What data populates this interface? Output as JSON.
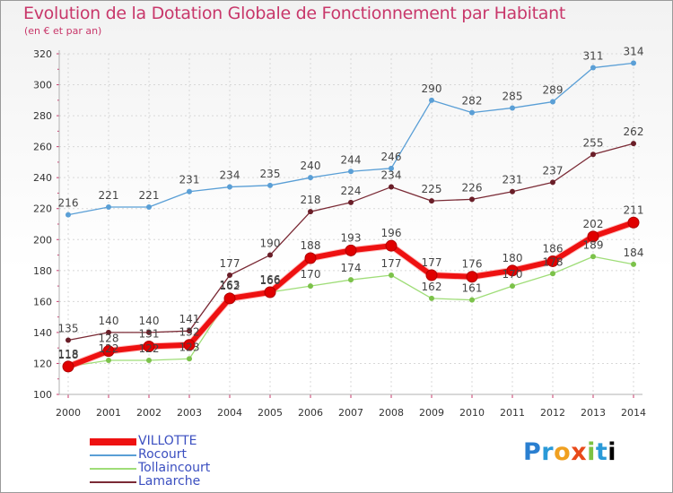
{
  "chart_data": {
    "type": "line",
    "title": "Evolution de la Dotation Globale de Fonctionnement par Habitant",
    "subtitle": "(en € et par an)",
    "categories": [
      "2000",
      "2001",
      "2002",
      "2003",
      "2004",
      "2005",
      "2006",
      "2007",
      "2008",
      "2009",
      "2010",
      "2011",
      "2012",
      "2013",
      "2014"
    ],
    "ylim": [
      100,
      320
    ],
    "yticks": [
      100,
      120,
      140,
      160,
      180,
      200,
      220,
      240,
      260,
      280,
      300,
      320
    ],
    "series": [
      {
        "name": "Rocourt",
        "color": "#5a9fd6",
        "marker": "#5a9fd6",
        "width": 1.3,
        "label_dy": -9,
        "values": [
          216,
          221,
          221,
          231,
          234,
          235,
          240,
          244,
          246,
          290,
          282,
          285,
          289,
          311,
          314
        ]
      },
      {
        "name": "Lamarche",
        "color": "#7a2a35",
        "marker": "#6a1e28",
        "width": 1.3,
        "label_dy": -9,
        "values": [
          135,
          140,
          140,
          141,
          177,
          190,
          218,
          224,
          234,
          225,
          226,
          231,
          237,
          255,
          262
        ]
      },
      {
        "name": "Tollaincourt",
        "color": "#9fdd78",
        "marker": "#7cc24a",
        "width": 1.3,
        "label_dy": -9,
        "values": [
          118,
          122,
          122,
          123,
          163,
          166,
          170,
          174,
          177,
          162,
          161,
          170,
          178,
          189,
          184
        ]
      },
      {
        "name": "VILLOTTE",
        "color": "#ee1111",
        "marker": "#e00000",
        "width": 6,
        "label_dy": -10,
        "highlight": true,
        "values": [
          118,
          128,
          131,
          132,
          162,
          166,
          188,
          193,
          196,
          177,
          176,
          180,
          186,
          202,
          211
        ]
      }
    ],
    "legend": [
      {
        "name": "VILLOTTE",
        "color": "#ee1111",
        "thickness": 8
      },
      {
        "name": "Rocourt",
        "color": "#5a9fd6",
        "thickness": 2
      },
      {
        "name": "Tollaincourt",
        "color": "#9fdd78",
        "thickness": 2
      },
      {
        "name": "Lamarche",
        "color": "#7a2a35",
        "thickness": 2
      }
    ]
  },
  "logo_text": "Proxiti"
}
